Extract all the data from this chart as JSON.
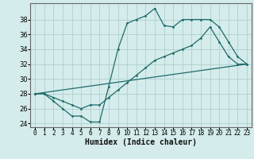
{
  "title": "",
  "xlabel": "Humidex (Indice chaleur)",
  "background_color": "#d4eceb",
  "grid_color": "#aed0ce",
  "line_color": "#1e6b6a",
  "xlim": [
    -0.5,
    23.5
  ],
  "ylim": [
    23.5,
    40.2
  ],
  "yticks": [
    24,
    26,
    28,
    30,
    32,
    34,
    36,
    38
  ],
  "xticks": [
    0,
    1,
    2,
    3,
    4,
    5,
    6,
    7,
    8,
    9,
    10,
    11,
    12,
    13,
    14,
    15,
    16,
    17,
    18,
    19,
    20,
    21,
    22,
    23
  ],
  "line1_x": [
    0,
    1,
    2,
    3,
    4,
    5,
    6,
    7,
    8,
    9,
    10,
    11,
    12,
    13,
    14,
    15,
    16,
    17,
    18,
    19,
    20,
    21,
    22,
    23
  ],
  "line1_y": [
    28,
    28,
    27,
    26,
    25,
    25,
    24.2,
    24.2,
    29,
    34,
    37.5,
    38,
    38.5,
    39.5,
    37.2,
    37,
    38,
    38,
    38,
    38,
    37,
    35,
    33,
    32
  ],
  "line2_x": [
    0,
    1,
    2,
    3,
    4,
    5,
    6,
    7,
    8,
    9,
    10,
    11,
    12,
    13,
    14,
    15,
    16,
    17,
    18,
    19,
    20,
    21,
    22,
    23
  ],
  "line2_y": [
    28,
    28,
    27.5,
    27,
    26.5,
    26,
    26.5,
    26.5,
    27.5,
    28.5,
    29.5,
    30.5,
    31.5,
    32.5,
    33,
    33.5,
    34,
    34.5,
    35.5,
    37,
    35,
    33,
    32,
    32
  ],
  "line3_x": [
    0,
    23
  ],
  "line3_y": [
    28,
    32
  ]
}
